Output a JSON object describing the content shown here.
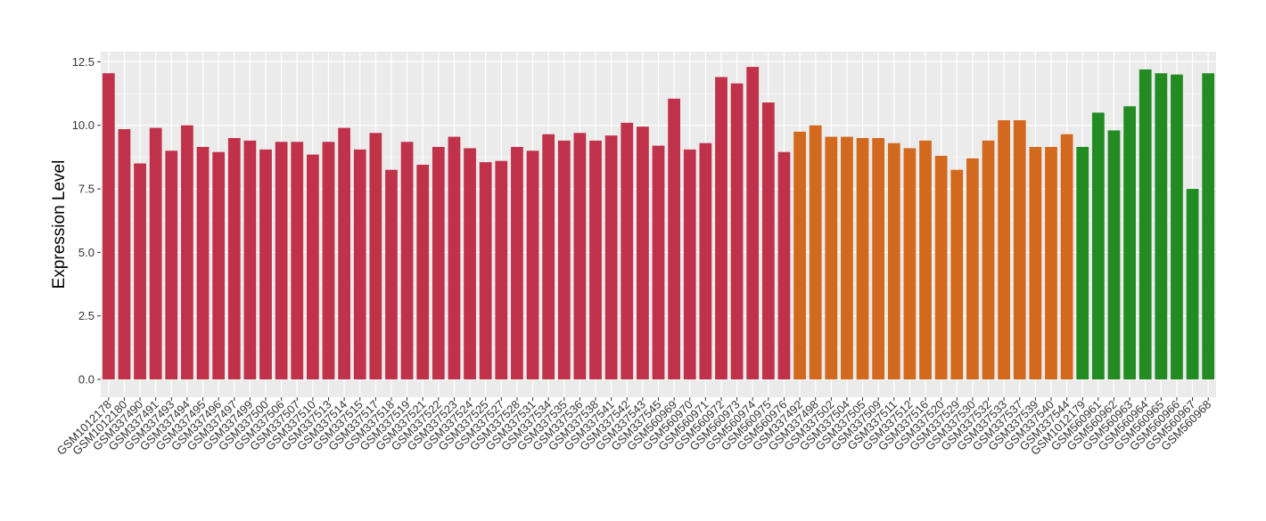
{
  "chart_data": {
    "type": "bar",
    "xlabel": "",
    "ylabel": "Expression Level",
    "ylim": [
      -0.7,
      12.9
    ],
    "yticks": [
      0.0,
      2.5,
      5.0,
      7.5,
      10.0,
      12.5
    ],
    "ytick_labels": [
      "0.0",
      "2.5",
      "5.0",
      "7.5",
      "10.0",
      "12.5"
    ],
    "grid": true,
    "legend": "none",
    "colors": {
      "red": "#C0314A",
      "orange": "#D2691E",
      "green": "#228B22",
      "panel": "#EBEBEB",
      "grid": "#FFFFFF"
    },
    "categories": [
      "GSM1012178",
      "GSM1012180",
      "GSM337490",
      "GSM337491",
      "GSM337493",
      "GSM337494",
      "GSM337495",
      "GSM337496",
      "GSM337497",
      "GSM337499",
      "GSM337500",
      "GSM337506",
      "GSM337507",
      "GSM337510",
      "GSM337513",
      "GSM337514",
      "GSM337515",
      "GSM337517",
      "GSM337518",
      "GSM337519",
      "GSM337521",
      "GSM337522",
      "GSM337523",
      "GSM337524",
      "GSM337525",
      "GSM337527",
      "GSM337528",
      "GSM337531",
      "GSM337534",
      "GSM337535",
      "GSM337536",
      "GSM337538",
      "GSM337541",
      "GSM337542",
      "GSM337543",
      "GSM337545",
      "GSM560969",
      "GSM560970",
      "GSM560971",
      "GSM560972",
      "GSM560973",
      "GSM560974",
      "GSM560975",
      "GSM560976",
      "GSM337492",
      "GSM337498",
      "GSM337502",
      "GSM337504",
      "GSM337505",
      "GSM337509",
      "GSM337511",
      "GSM337512",
      "GSM337516",
      "GSM337520",
      "GSM337529",
      "GSM337530",
      "GSM337532",
      "GSM337533",
      "GSM337537",
      "GSM337539",
      "GSM337540",
      "GSM337544",
      "GSM1012179",
      "GSM560961",
      "GSM560962",
      "GSM560963",
      "GSM560964",
      "GSM560965",
      "GSM560966",
      "GSM560967",
      "GSM560968"
    ],
    "values": [
      12.05,
      9.85,
      8.5,
      9.9,
      9.0,
      10.0,
      9.15,
      8.95,
      9.5,
      9.4,
      9.05,
      9.35,
      9.35,
      8.85,
      9.35,
      9.9,
      9.05,
      9.7,
      8.25,
      9.35,
      8.45,
      9.15,
      9.55,
      9.1,
      8.55,
      8.6,
      9.15,
      9.0,
      9.65,
      9.4,
      9.7,
      9.4,
      9.6,
      10.1,
      9.95,
      9.2,
      11.05,
      9.05,
      9.3,
      11.9,
      11.65,
      12.3,
      10.9,
      8.95,
      9.75,
      10.0,
      9.55,
      9.55,
      9.5,
      9.5,
      9.3,
      9.1,
      9.4,
      8.8,
      8.25,
      8.7,
      9.4,
      10.2,
      10.2,
      9.15,
      9.15,
      9.65,
      9.15,
      10.5,
      9.8,
      10.75,
      12.2,
      12.05,
      12.0,
      7.5,
      12.05
    ],
    "bar_colors": [
      "red",
      "red",
      "red",
      "red",
      "red",
      "red",
      "red",
      "red",
      "red",
      "red",
      "red",
      "red",
      "red",
      "red",
      "red",
      "red",
      "red",
      "red",
      "red",
      "red",
      "red",
      "red",
      "red",
      "red",
      "red",
      "red",
      "red",
      "red",
      "red",
      "red",
      "red",
      "red",
      "red",
      "red",
      "red",
      "red",
      "red",
      "red",
      "red",
      "red",
      "red",
      "red",
      "red",
      "red",
      "orange",
      "orange",
      "orange",
      "orange",
      "orange",
      "orange",
      "orange",
      "orange",
      "orange",
      "orange",
      "orange",
      "orange",
      "orange",
      "orange",
      "orange",
      "orange",
      "orange",
      "orange",
      "green",
      "green",
      "green",
      "green",
      "green",
      "green",
      "green",
      "green",
      "green"
    ]
  }
}
